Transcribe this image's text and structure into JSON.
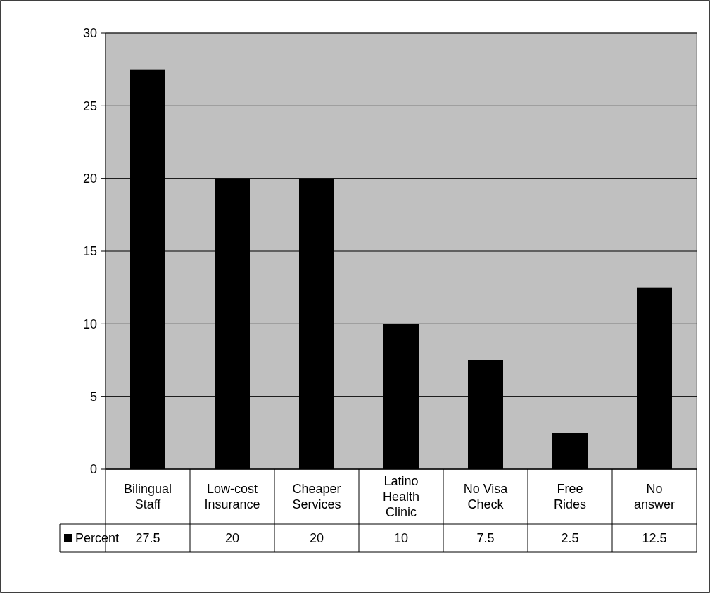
{
  "chart_data": {
    "type": "bar",
    "categories": [
      "Bilingual Staff",
      "Low-cost Insurance",
      "Cheaper Services",
      "Latino Health Clinic",
      "No Visa Check",
      "Free Rides",
      "No answer"
    ],
    "series": [
      {
        "name": "Percent",
        "color": "#000000",
        "values": [
          27.5,
          20,
          20,
          10,
          7.5,
          2.5,
          12.5
        ]
      }
    ],
    "ylim": [
      0,
      30
    ],
    "yticks": [
      0,
      5,
      10,
      15,
      20,
      25,
      30
    ],
    "grid": "y",
    "legend": "bottom",
    "data_labels": true
  }
}
